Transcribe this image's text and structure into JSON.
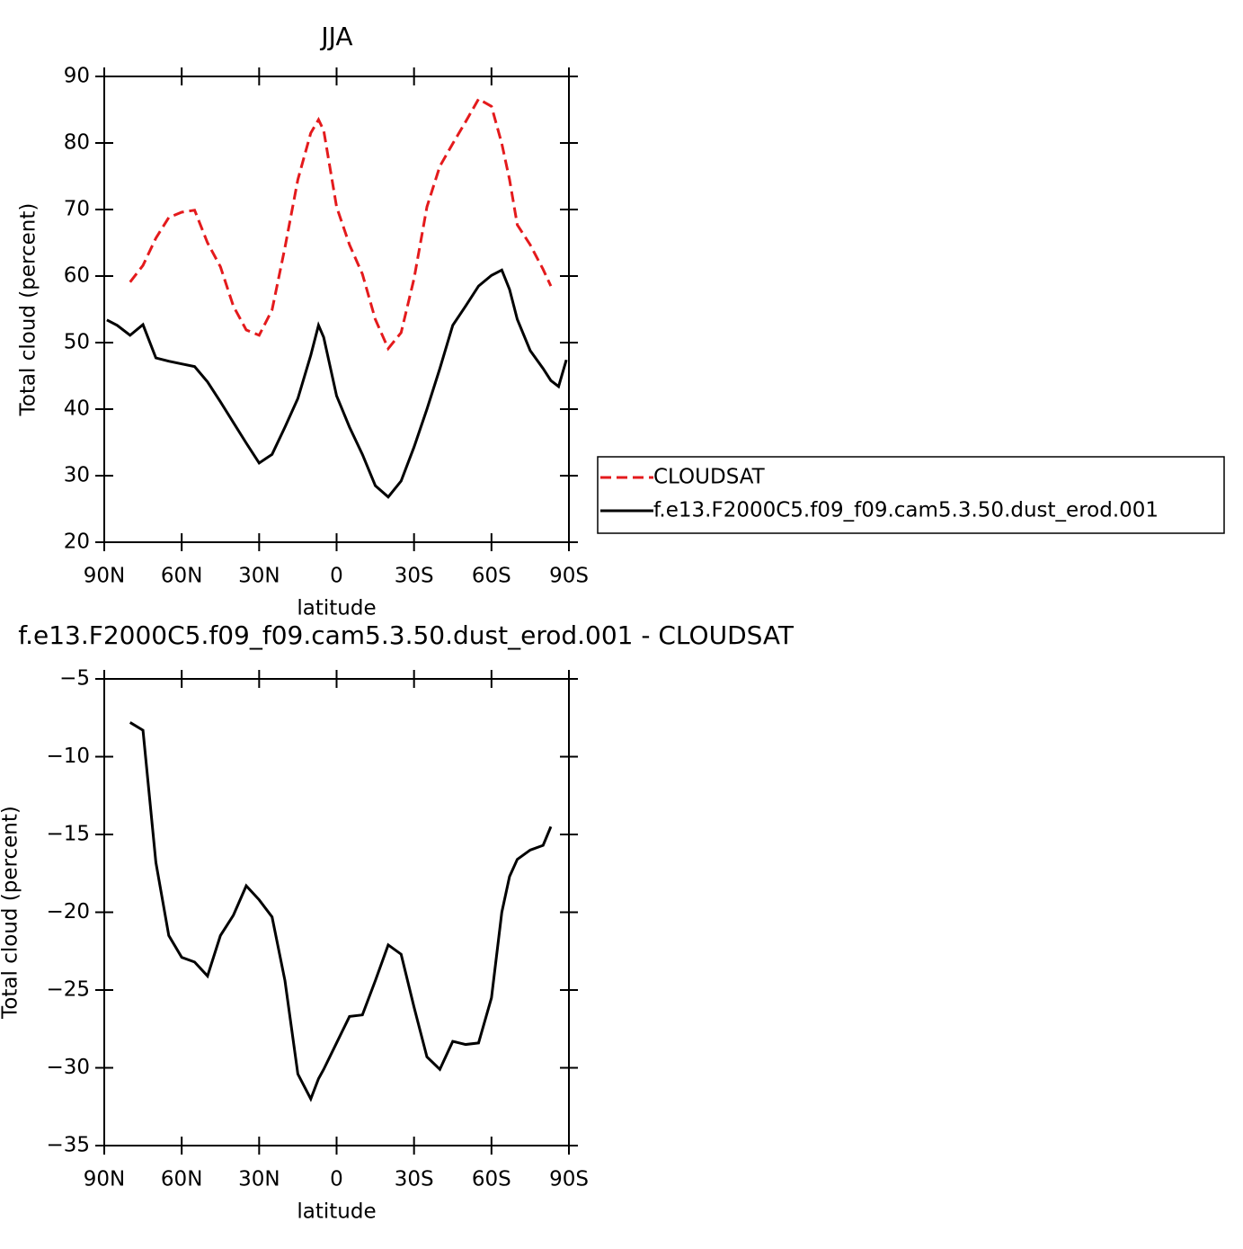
{
  "chart_data": [
    {
      "type": "line",
      "title": "JJA",
      "x_label": "latitude",
      "y_label": "Total cloud (percent)",
      "x": [
        89,
        85,
        80,
        75,
        70,
        65,
        60,
        55,
        50,
        45,
        40,
        35,
        30,
        25,
        20,
        15,
        10,
        7,
        5,
        0,
        -5,
        -10,
        -15,
        -20,
        -25,
        -30,
        -35,
        -40,
        -45,
        -50,
        -55,
        -60,
        -64,
        -67,
        -70,
        -75,
        -80,
        -83,
        -86,
        -89
      ],
      "xlim": [
        90,
        -90
      ],
      "xticks": [
        {
          "value": 90,
          "label": "90N"
        },
        {
          "value": 60,
          "label": "60N"
        },
        {
          "value": 30,
          "label": "30N"
        },
        0,
        {
          "value": -30,
          "label": "30S"
        },
        {
          "value": -60,
          "label": "60S"
        },
        {
          "value": -90,
          "label": "90S"
        }
      ],
      "ylim": [
        20,
        90
      ],
      "yticks": [
        20,
        30,
        40,
        50,
        60,
        70,
        80,
        90
      ],
      "legend": "right",
      "series": [
        {
          "name": "CLOUDSAT",
          "color": "#e41a1c",
          "line_style": "dashed",
          "values": [
            null,
            null,
            59.1,
            61.6,
            65.7,
            68.8,
            69.6,
            69.9,
            65,
            61.4,
            55.5,
            51.9,
            51.1,
            54.9,
            64.3,
            74.5,
            81.5,
            83.5,
            81.9,
            70.4,
            64.7,
            60.3,
            53.5,
            49.1,
            51.5,
            59.6,
            70.4,
            76.5,
            79.9,
            83.2,
            86.6,
            85.5,
            79.9,
            74.5,
            67.7,
            64.7,
            61,
            58.5,
            null,
            null
          ]
        },
        {
          "name": "f.e13.F2000C5.f09_f09.cam5.3.50.dust_erod.001",
          "color": "#000000",
          "line_style": "solid",
          "values": [
            53.4,
            52.6,
            51.1,
            52.7,
            47.7,
            47.2,
            46.8,
            46.4,
            44.1,
            41.1,
            38,
            34.9,
            31.9,
            33.2,
            37.3,
            41.6,
            48.1,
            52.6,
            50.8,
            42,
            37.3,
            33.2,
            28.5,
            26.8,
            29.2,
            34.3,
            40,
            46.1,
            52.6,
            55.5,
            58.5,
            60.1,
            60.9,
            58,
            53.5,
            48.8,
            46.1,
            44.3,
            43.4,
            47.4
          ]
        }
      ]
    },
    {
      "type": "line",
      "title": "f.e13.F2000C5.f09_f09.cam5.3.50.dust_erod.001 - CLOUDSAT",
      "x_label": "latitude",
      "y_label": "Total cloud (percent)",
      "x": [
        89,
        85,
        80,
        75,
        70,
        65,
        60,
        55,
        50,
        45,
        40,
        35,
        30,
        25,
        20,
        15,
        10,
        7,
        5,
        0,
        -5,
        -10,
        -15,
        -20,
        -25,
        -30,
        -35,
        -40,
        -45,
        -50,
        -55,
        -60,
        -64,
        -67,
        -70,
        -75,
        -80,
        -83,
        -86,
        -89
      ],
      "xlim": [
        90,
        -90
      ],
      "xticks": [
        {
          "value": 90,
          "label": "90N"
        },
        {
          "value": 60,
          "label": "60N"
        },
        {
          "value": 30,
          "label": "30N"
        },
        0,
        {
          "value": -30,
          "label": "30S"
        },
        {
          "value": -60,
          "label": "60S"
        },
        {
          "value": -90,
          "label": "90S"
        }
      ],
      "ylim": [
        -35,
        -5
      ],
      "yticks": [
        {
          "value": -35,
          "label": "−35"
        },
        {
          "value": -30,
          "label": "−30"
        },
        {
          "value": -25,
          "label": "−25"
        },
        {
          "value": -20,
          "label": "−20"
        },
        {
          "value": -15,
          "label": "−15"
        },
        {
          "value": -10,
          "label": "−10"
        },
        {
          "value": -5,
          "label": "−5"
        }
      ],
      "series": [
        {
          "color": "#000000",
          "line_style": "solid",
          "values": [
            null,
            null,
            -7.8,
            -8.3,
            -16.8,
            -21.5,
            -22.9,
            -23.2,
            -24.1,
            -21.5,
            -20.2,
            -18.3,
            -19.2,
            -20.3,
            -24.4,
            -30.4,
            -32,
            -30.7,
            -30.1,
            -28.4,
            -26.7,
            -26.6,
            -24.4,
            -22.1,
            -22.7,
            -26.1,
            -29.3,
            -30.1,
            -28.3,
            -28.5,
            -28.4,
            -25.5,
            -20,
            -17.7,
            -16.6,
            -16,
            -15.7,
            -14.5,
            null,
            null
          ]
        }
      ]
    }
  ]
}
